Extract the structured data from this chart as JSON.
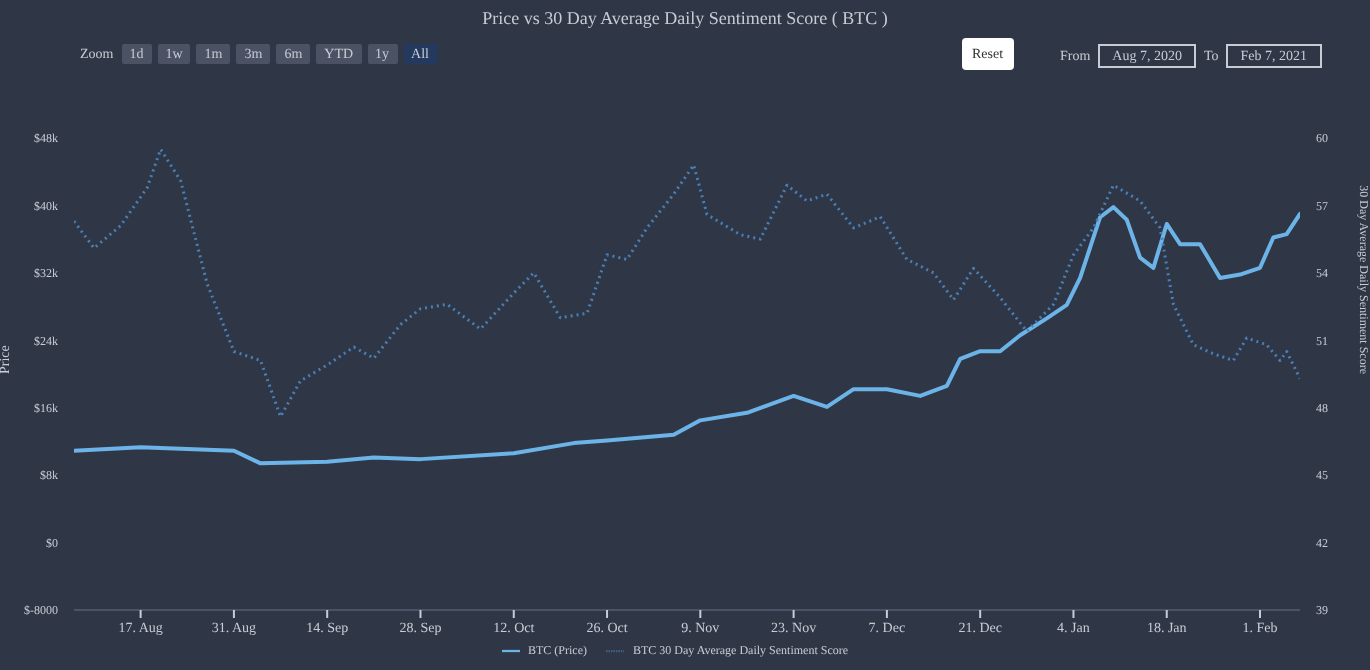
{
  "chart_data": {
    "type": "line",
    "title": "Price vs 30 Day Average Daily Sentiment Score ( BTC )",
    "ylabel": "Price",
    "y2label": "30 Day Average Daily Sentiment Score",
    "annotations": [
      "Zoom",
      "1d",
      "1w",
      "1m",
      "3m",
      "6m",
      "YTD",
      "1y",
      "All",
      "Reset",
      "From",
      "Aug 7, 2020",
      "To",
      "Feb 7, 2021"
    ],
    "xlim": [
      "2020-08-07",
      "2021-02-07"
    ],
    "xticks": [
      {
        "value": "2020-08-17",
        "label": "17. Aug"
      },
      {
        "value": "2020-08-31",
        "label": "31. Aug"
      },
      {
        "value": "2020-09-14",
        "label": "14. Sep"
      },
      {
        "value": "2020-09-28",
        "label": "28. Sep"
      },
      {
        "value": "2020-10-12",
        "label": "12. Oct"
      },
      {
        "value": "2020-10-26",
        "label": "26. Oct"
      },
      {
        "value": "2020-11-09",
        "label": "9. Nov"
      },
      {
        "value": "2020-11-23",
        "label": "23. Nov"
      },
      {
        "value": "2020-12-07",
        "label": "7. Dec"
      },
      {
        "value": "2020-12-21",
        "label": "21. Dec"
      },
      {
        "value": "2021-01-04",
        "label": "4. Jan"
      },
      {
        "value": "2021-01-18",
        "label": "18. Jan"
      },
      {
        "value": "2021-02-01",
        "label": "1. Feb"
      }
    ],
    "ylim": [
      -8000,
      48000
    ],
    "yticks": [
      {
        "value": -8000,
        "label": "$-8000"
      },
      {
        "value": 0,
        "label": "$0"
      },
      {
        "value": 8000,
        "label": "$8k"
      },
      {
        "value": 16000,
        "label": "$16k"
      },
      {
        "value": 24000,
        "label": "$24k"
      },
      {
        "value": 32000,
        "label": "$32k"
      },
      {
        "value": 40000,
        "label": "$40k"
      },
      {
        "value": 48000,
        "label": "$48k"
      }
    ],
    "y2lim": [
      39,
      60
    ],
    "y2ticks": [
      39,
      42,
      45,
      48,
      51,
      54,
      57,
      60
    ],
    "grid": false,
    "legend": "bottom",
    "marker": "none",
    "series": [
      {
        "name": "BTC (Price)",
        "color": "#6cb4e8",
        "line_style": "solid",
        "x": [
          "2020-08-07",
          "2020-08-17",
          "2020-08-31",
          "2020-09-04",
          "2020-09-14",
          "2020-09-21",
          "2020-09-28",
          "2020-10-12",
          "2020-10-21",
          "2020-10-26",
          "2020-11-05",
          "2020-11-09",
          "2020-11-16",
          "2020-11-23",
          "2020-11-28",
          "2020-12-02",
          "2020-12-07",
          "2020-12-12",
          "2020-12-16",
          "2020-12-18",
          "2020-12-21",
          "2020-12-24",
          "2020-12-27",
          "2020-12-31",
          "2021-01-03",
          "2021-01-05",
          "2021-01-08",
          "2021-01-10",
          "2021-01-12",
          "2021-01-14",
          "2021-01-16",
          "2021-01-18",
          "2021-01-20",
          "2021-01-23",
          "2021-01-26",
          "2021-01-29",
          "2021-02-01",
          "2021-02-03",
          "2021-02-05",
          "2021-02-07"
        ],
        "values": [
          10900,
          11300,
          10900,
          9400,
          9600,
          10100,
          9900,
          10600,
          11800,
          12100,
          12800,
          14500,
          15400,
          17400,
          16100,
          18200,
          18200,
          17400,
          18600,
          21800,
          22700,
          22700,
          24600,
          26600,
          28200,
          31400,
          38600,
          39800,
          38300,
          33800,
          32600,
          37800,
          35400,
          35400,
          31400,
          31800,
          32600,
          36200,
          36600,
          39000
        ]
      },
      {
        "name": "BTC 30 Day Average Daily Sentiment Score",
        "color": "#4a7fb5",
        "line_style": "dotted",
        "axis": "y2",
        "x": [
          "2020-08-07",
          "2020-08-10",
          "2020-08-14",
          "2020-08-18",
          "2020-08-20",
          "2020-08-23",
          "2020-08-27",
          "2020-08-31",
          "2020-09-04",
          "2020-09-07",
          "2020-09-10",
          "2020-09-14",
          "2020-09-18",
          "2020-09-21",
          "2020-09-25",
          "2020-09-28",
          "2020-10-02",
          "2020-10-07",
          "2020-10-12",
          "2020-10-15",
          "2020-10-19",
          "2020-10-23",
          "2020-10-26",
          "2020-10-29",
          "2020-11-01",
          "2020-11-05",
          "2020-11-08",
          "2020-11-10",
          "2020-11-15",
          "2020-11-18",
          "2020-11-22",
          "2020-11-25",
          "2020-11-28",
          "2020-12-02",
          "2020-12-06",
          "2020-12-10",
          "2020-12-14",
          "2020-12-17",
          "2020-12-20",
          "2020-12-24",
          "2020-12-28",
          "2021-01-01",
          "2021-01-04",
          "2021-01-07",
          "2021-01-10",
          "2021-01-14",
          "2021-01-17",
          "2021-01-19",
          "2021-01-22",
          "2021-01-25",
          "2021-01-28",
          "2021-01-30",
          "2021-02-02",
          "2021-02-04",
          "2021-02-05",
          "2021-02-07"
        ],
        "values": [
          56.3,
          55.1,
          56.1,
          57.8,
          59.5,
          58.1,
          53.5,
          50.5,
          50.1,
          47.6,
          49.2,
          49.9,
          50.7,
          50.2,
          51.7,
          52.4,
          52.6,
          51.5,
          53.1,
          54.0,
          52.0,
          52.2,
          54.8,
          54.6,
          56.0,
          57.5,
          58.8,
          56.6,
          55.7,
          55.5,
          57.9,
          57.2,
          57.5,
          56.0,
          56.5,
          54.6,
          54.0,
          52.8,
          54.2,
          52.9,
          51.4,
          52.6,
          54.8,
          56.0,
          57.9,
          57.2,
          56.0,
          52.6,
          50.8,
          50.4,
          50.1,
          51.1,
          50.8,
          50.1,
          50.5,
          49.3
        ]
      }
    ]
  }
}
